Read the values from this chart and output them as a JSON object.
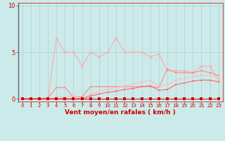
{
  "x": [
    0,
    1,
    2,
    3,
    4,
    5,
    6,
    7,
    8,
    9,
    10,
    11,
    12,
    13,
    14,
    15,
    16,
    17,
    18,
    19,
    20,
    21,
    22,
    23
  ],
  "line1": [
    0.0,
    0.0,
    0.0,
    0.05,
    6.5,
    5.0,
    5.0,
    3.5,
    5.0,
    4.5,
    5.0,
    6.5,
    5.0,
    5.0,
    5.0,
    4.5,
    4.8,
    3.0,
    3.0,
    3.0,
    2.8,
    3.5,
    3.5,
    2.0
  ],
  "line2": [
    0.0,
    0.0,
    0.0,
    0.1,
    1.2,
    1.2,
    0.2,
    0.2,
    1.3,
    1.3,
    1.3,
    1.3,
    1.3,
    1.3,
    1.3,
    1.3,
    1.2,
    3.2,
    2.8,
    2.8,
    2.8,
    3.0,
    2.8,
    2.5
  ],
  "line3": [
    0.0,
    0.0,
    0.0,
    0.0,
    0.15,
    0.2,
    0.3,
    0.0,
    0.5,
    0.8,
    1.0,
    1.2,
    1.4,
    1.6,
    1.8,
    2.0,
    1.3,
    1.5,
    2.0,
    2.2,
    2.4,
    2.5,
    2.5,
    2.2
  ],
  "line4": [
    0.0,
    0.0,
    0.0,
    0.0,
    0.0,
    0.0,
    0.0,
    0.0,
    0.3,
    0.5,
    0.7,
    0.8,
    1.0,
    1.1,
    1.3,
    1.4,
    0.9,
    1.0,
    1.5,
    1.7,
    1.9,
    2.0,
    2.0,
    1.8
  ],
  "line5": [
    0.0,
    0.0,
    0.0,
    0.0,
    0.0,
    0.0,
    0.0,
    0.0,
    0.0,
    0.0,
    0.0,
    0.0,
    0.0,
    0.0,
    0.0,
    0.0,
    0.0,
    0.0,
    0.0,
    0.0,
    0.0,
    0.0,
    0.0,
    0.0
  ],
  "bg_color": "#cceaea",
  "grid_color": "#aad4d4",
  "line1_color": "#ffaaaa",
  "line2_color": "#ff8888",
  "line3_color": "#ffbbbb",
  "line4_color": "#ff6666",
  "line5_color": "#cc0000",
  "xlabel": "Vent moyen/en rafales ( km/h )",
  "ylim": [
    -0.3,
    10.3
  ],
  "xlim": [
    -0.5,
    23.5
  ],
  "yticks": [
    0,
    5,
    10
  ],
  "xticks": [
    0,
    1,
    2,
    3,
    4,
    5,
    6,
    7,
    8,
    9,
    10,
    11,
    12,
    13,
    14,
    15,
    16,
    17,
    18,
    19,
    20,
    21,
    22,
    23
  ]
}
